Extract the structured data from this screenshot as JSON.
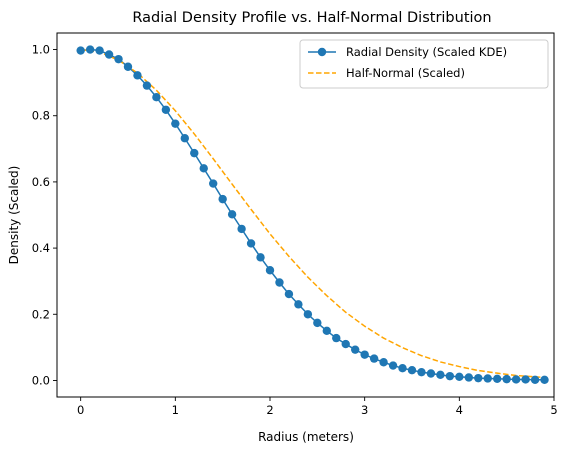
{
  "chart_data": {
    "type": "line",
    "title": "Radial Density Profile vs. Half-Normal Distribution",
    "xlabel": "Radius (meters)",
    "ylabel": "Density (Scaled)",
    "xlim": [
      -0.25,
      5.0
    ],
    "ylim": [
      -0.05,
      1.05
    ],
    "xticks": [
      0,
      1,
      2,
      3,
      4,
      5
    ],
    "yticks": [
      0.0,
      0.2,
      0.4,
      0.6,
      0.8,
      1.0
    ],
    "xtick_labels": [
      "0",
      "1",
      "2",
      "3",
      "4",
      "5"
    ],
    "ytick_labels": [
      "0.0",
      "0.2",
      "0.4",
      "0.6",
      "0.8",
      "1.0"
    ],
    "grid": false,
    "legend_position": "top-right",
    "series": [
      {
        "name": "Radial Density (Scaled KDE)",
        "style": "line-with-markers",
        "color": "#1f77b4",
        "x": [
          0.0,
          0.1,
          0.2,
          0.3,
          0.4,
          0.5,
          0.6,
          0.7,
          0.8,
          0.9,
          1.0,
          1.1,
          1.2,
          1.3,
          1.4,
          1.5,
          1.6,
          1.7,
          1.8,
          1.9,
          2.0,
          2.1,
          2.2,
          2.3,
          2.4,
          2.5,
          2.6,
          2.7,
          2.8,
          2.9,
          3.0,
          3.1,
          3.2,
          3.3,
          3.4,
          3.5,
          3.6,
          3.7,
          3.8,
          3.9,
          4.0,
          4.1,
          4.2,
          4.3,
          4.4,
          4.5,
          4.6,
          4.7,
          4.8,
          4.9
        ],
        "y": [
          0.997,
          1.0,
          0.997,
          0.985,
          0.971,
          0.948,
          0.922,
          0.891,
          0.856,
          0.818,
          0.776,
          0.732,
          0.687,
          0.641,
          0.595,
          0.548,
          0.502,
          0.458,
          0.414,
          0.372,
          0.333,
          0.296,
          0.261,
          0.23,
          0.2,
          0.174,
          0.15,
          0.128,
          0.11,
          0.093,
          0.078,
          0.066,
          0.055,
          0.045,
          0.037,
          0.031,
          0.025,
          0.021,
          0.017,
          0.013,
          0.011,
          0.009,
          0.007,
          0.006,
          0.005,
          0.004,
          0.003,
          0.003,
          0.002,
          0.002
        ]
      },
      {
        "name": "Half-Normal (Scaled)",
        "style": "dashed",
        "color": "#ffa500",
        "x": [
          0.0,
          0.2,
          0.4,
          0.6,
          0.8,
          1.0,
          1.2,
          1.4,
          1.6,
          1.8,
          2.0,
          2.2,
          2.4,
          2.6,
          2.8,
          3.0,
          3.2,
          3.4,
          3.6,
          3.8,
          4.0,
          4.2,
          4.4,
          4.6,
          4.8,
          4.9
        ],
        "y": [
          1.0,
          0.992,
          0.968,
          0.929,
          0.877,
          0.815,
          0.745,
          0.67,
          0.593,
          0.517,
          0.443,
          0.375,
          0.312,
          0.256,
          0.206,
          0.164,
          0.128,
          0.099,
          0.075,
          0.056,
          0.042,
          0.03,
          0.022,
          0.015,
          0.011,
          0.009
        ]
      }
    ]
  }
}
